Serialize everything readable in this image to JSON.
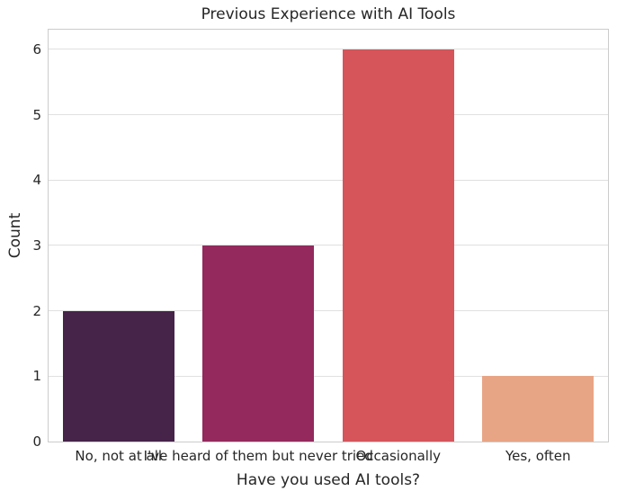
{
  "chart_data": {
    "type": "bar",
    "title": "Previous Experience with AI Tools",
    "xlabel": "Have you used AI tools?",
    "ylabel": "Count",
    "categories": [
      "No, not at all",
      "I've heard of them but never tried",
      "Occasionally",
      "Yes, often"
    ],
    "values": [
      2,
      3,
      6,
      1
    ],
    "bar_colors": [
      "#462349",
      "#93295C",
      "#D5555B",
      "#E8A585"
    ],
    "yticks": [
      0,
      1,
      2,
      3,
      4,
      5,
      6
    ],
    "ylim": [
      0,
      6.3
    ],
    "bar_width_fraction": 0.8,
    "grid": "horizontal",
    "legend": "none",
    "background_color": "#ffffff",
    "grid_color": "#e0e0e0",
    "spine_color": "#cccccc",
    "text_color": "#262626"
  }
}
